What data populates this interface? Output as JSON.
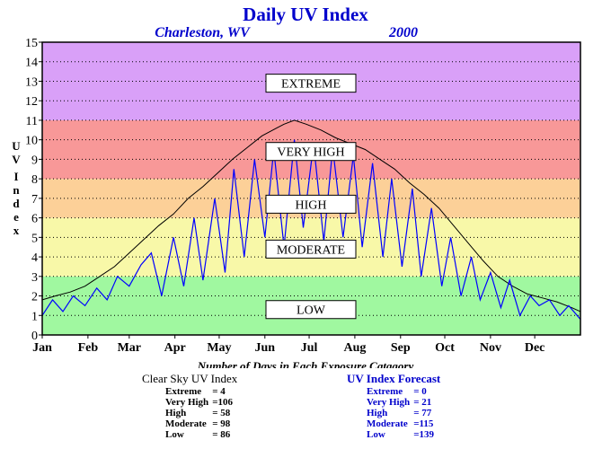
{
  "colors": {
    "extreme": "#d9a0f8",
    "very_high": "#f89898",
    "high": "#fcd098",
    "moderate": "#f8f8a8",
    "low": "#a0f8a0",
    "clear_sky_line": "#000000",
    "forecast_line": "#0000ff",
    "title": "#0000cc"
  },
  "chart_data": {
    "type": "line",
    "title": "Daily UV Index",
    "subtitle_location": "Charleston, WV",
    "subtitle_year": "2000",
    "ylabel": "UV Index",
    "xlabel": "Number of Days in Each Exposure Catagory",
    "ylim": [
      0,
      15
    ],
    "yticks": [
      0,
      1,
      2,
      3,
      4,
      5,
      6,
      7,
      8,
      9,
      10,
      11,
      12,
      13,
      14,
      15
    ],
    "months": [
      "Jan",
      "Feb",
      "Mar",
      "Apr",
      "May",
      "Jun",
      "Jul",
      "Aug",
      "Sep",
      "Oct",
      "Nov",
      "Dec"
    ],
    "grid": true,
    "bands": [
      {
        "label": "LOW",
        "from": 0,
        "to": 3,
        "color_key": "low"
      },
      {
        "label": "MODERATE",
        "from": 3,
        "to": 6,
        "color_key": "moderate"
      },
      {
        "label": "HIGH",
        "from": 6,
        "to": 8,
        "color_key": "high"
      },
      {
        "label": "VERY HIGH",
        "from": 8,
        "to": 11,
        "color_key": "very_high"
      },
      {
        "label": "EXTREME",
        "from": 11,
        "to": 15,
        "color_key": "extreme"
      }
    ],
    "series": [
      {
        "color_key": "clear_sky_line",
        "x_day": [
          1,
          10,
          20,
          30,
          40,
          50,
          60,
          70,
          80,
          90,
          100,
          110,
          120,
          130,
          140,
          150,
          160,
          165,
          172,
          180,
          190,
          200,
          210,
          220,
          230,
          240,
          250,
          260,
          270,
          280,
          290,
          300,
          310,
          320,
          330,
          340,
          350,
          360,
          366
        ],
        "values": [
          1.8,
          2.0,
          2.2,
          2.5,
          3.0,
          3.5,
          4.2,
          4.9,
          5.6,
          6.2,
          7.0,
          7.6,
          8.3,
          9.0,
          9.6,
          10.2,
          10.6,
          10.8,
          11.0,
          10.8,
          10.5,
          10.1,
          9.8,
          9.5,
          9.0,
          8.5,
          7.8,
          7.2,
          6.5,
          5.6,
          4.7,
          3.8,
          3.0,
          2.5,
          2.1,
          1.9,
          1.7,
          1.4,
          1.2
        ]
      },
      {
        "color_key": "forecast_line",
        "x_day": [
          1,
          8,
          15,
          22,
          30,
          38,
          45,
          52,
          60,
          68,
          75,
          82,
          90,
          97,
          104,
          110,
          118,
          125,
          131,
          138,
          145,
          152,
          158,
          165,
          172,
          178,
          185,
          192,
          198,
          205,
          212,
          218,
          225,
          232,
          238,
          245,
          252,
          258,
          265,
          272,
          278,
          285,
          292,
          298,
          305,
          312,
          318,
          325,
          332,
          338,
          345,
          352,
          358,
          366
        ],
        "values": [
          1.0,
          1.8,
          1.2,
          2.0,
          1.5,
          2.4,
          1.8,
          3.0,
          2.5,
          3.6,
          4.2,
          2.0,
          5.0,
          2.5,
          6.0,
          2.8,
          7.0,
          3.2,
          8.5,
          4.0,
          9.0,
          5.0,
          9.5,
          4.5,
          10.0,
          5.5,
          9.8,
          4.8,
          9.6,
          5.0,
          9.2,
          4.5,
          8.8,
          4.0,
          8.0,
          3.5,
          7.5,
          3.0,
          6.5,
          2.5,
          5.0,
          2.0,
          4.0,
          1.8,
          3.2,
          1.4,
          2.8,
          1.0,
          2.0,
          1.5,
          1.8,
          1.0,
          1.5,
          0.8
        ]
      }
    ]
  },
  "stats": {
    "title": "Number of Days in Each Exposure Catagory",
    "clear_sky": {
      "header": "Clear Sky UV Index",
      "rows": [
        {
          "label": "Extreme",
          "value": "= 4"
        },
        {
          "label": "Very High",
          "value": "=106"
        },
        {
          "label": "High",
          "value": "= 58"
        },
        {
          "label": "Moderate",
          "value": "= 98"
        },
        {
          "label": "Low",
          "value": "= 86"
        }
      ]
    },
    "forecast": {
      "header": "UV Index Forecast",
      "rows": [
        {
          "label": "Extreme",
          "value": "= 0"
        },
        {
          "label": "Very High",
          "value": "= 21"
        },
        {
          "label": "High",
          "value": "= 77"
        },
        {
          "label": "Moderate",
          "value": "=115"
        },
        {
          "label": "Low",
          "value": "=139"
        }
      ]
    }
  }
}
